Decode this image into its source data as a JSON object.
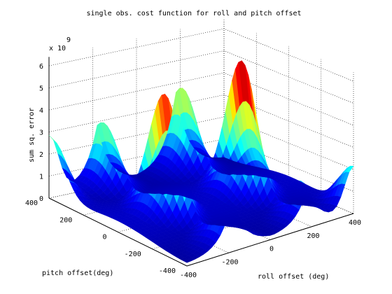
{
  "chart_data": {
    "type": "surface",
    "title": "single obs. cost function for roll and pitch offset",
    "xlabel": "roll offset (deg)",
    "ylabel": "pitch offset(deg)",
    "zlabel": "sum sq. error",
    "z_exponent_label": "x 10",
    "z_exponent": "9",
    "x_ticks": [
      "-400",
      "-200",
      "0",
      "200",
      "400"
    ],
    "y_ticks": [
      "-400",
      "-200",
      "0",
      "200",
      "400"
    ],
    "z_ticks": [
      "0",
      "1",
      "2",
      "3",
      "4",
      "5",
      "6"
    ],
    "xlim": [
      -400,
      400
    ],
    "ylim": [
      -400,
      400
    ],
    "zlim": [
      0,
      6
    ],
    "grid": true,
    "colormap": [
      "#00008f",
      "#0000ff",
      "#00ffff",
      "#80ff80",
      "#ffff00",
      "#ff0000",
      "#800000"
    ],
    "surface": {
      "grid_step_deg": 40,
      "peaks": [
        {
          "roll": -180,
          "pitch": 0,
          "value": 5.6
        },
        {
          "roll": 180,
          "pitch": 0,
          "value": 6.2
        },
        {
          "roll": -180,
          "pitch": 360,
          "value": 3.0
        },
        {
          "roll": 180,
          "pitch": 360,
          "value": 3.8
        },
        {
          "roll": -180,
          "pitch": -360,
          "value": 2.6
        },
        {
          "roll": 180,
          "pitch": -360,
          "value": 1.9
        }
      ]
    }
  }
}
